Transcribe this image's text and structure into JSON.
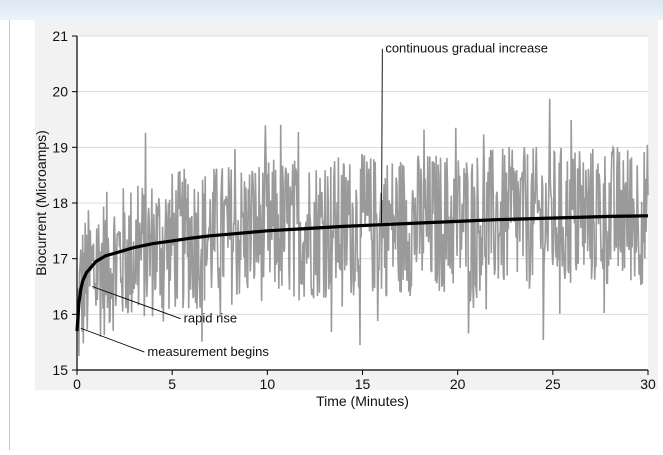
{
  "colors": {
    "plot_background": "#ffffff",
    "noise": "#9a9a9a",
    "trend": "#000000",
    "gridline": "#dcdcdc"
  },
  "chart_data": {
    "type": "line",
    "title": "",
    "xlabel": "Time (Minutes)",
    "ylabel": "Biocurrent (Microamps)",
    "xlim": [
      0,
      30
    ],
    "ylim": [
      15,
      21
    ],
    "xticks": [
      0,
      5,
      10,
      15,
      20,
      25,
      30
    ],
    "yticks": [
      15,
      16,
      17,
      18,
      19,
      20,
      21
    ],
    "grid": "horizontal",
    "series": [
      {
        "name": "",
        "style": "noisy raw measurement",
        "x": [
          0,
          0.2,
          0.5,
          1,
          1.5,
          2,
          3,
          4,
          5,
          6,
          7,
          8,
          9,
          10,
          12,
          14,
          16,
          18,
          20,
          22,
          24,
          26,
          28,
          30
        ],
        "center": [
          15.8,
          16.4,
          16.6,
          16.8,
          16.9,
          17.0,
          17.1,
          17.2,
          17.3,
          17.35,
          17.4,
          17.45,
          17.5,
          17.52,
          17.55,
          17.58,
          17.6,
          17.63,
          17.66,
          17.7,
          17.72,
          17.75,
          17.77,
          17.8
        ],
        "range": [
          15,
          20.8
        ]
      },
      {
        "name": "",
        "style": "smooth trend",
        "x": [
          0,
          0.1,
          0.2,
          0.3,
          0.5,
          0.75,
          1,
          1.5,
          2,
          3,
          4,
          5,
          6,
          7,
          8,
          9,
          10,
          12,
          14,
          16,
          18,
          20,
          22,
          24,
          26,
          28,
          30
        ],
        "y": [
          15.7,
          16.2,
          16.45,
          16.6,
          16.75,
          16.85,
          16.95,
          17.05,
          17.1,
          17.2,
          17.27,
          17.32,
          17.37,
          17.41,
          17.44,
          17.47,
          17.5,
          17.54,
          17.58,
          17.61,
          17.64,
          17.67,
          17.7,
          17.72,
          17.74,
          17.76,
          17.77
        ]
      }
    ],
    "annotations": [
      {
        "text": "continuous gradual increase",
        "x": 16.2,
        "y": 20.7,
        "point_x": 16.0,
        "point_y": 17.6
      },
      {
        "text": "rapid rise",
        "x": 5.6,
        "y": 15.85,
        "point_x": 0.8,
        "point_y": 16.5
      },
      {
        "text": "measurement begins",
        "x": 3.7,
        "y": 15.25,
        "point_x": 0.2,
        "point_y": 15.75
      }
    ]
  }
}
